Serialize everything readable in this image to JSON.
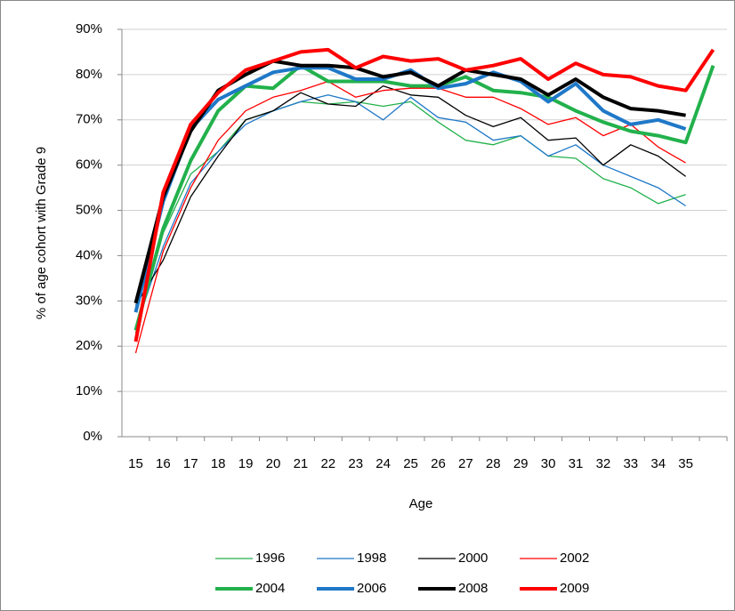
{
  "chart_data": {
    "type": "line",
    "y_label": "% of age cohort with Grade 9",
    "x_label": "Age",
    "categories": [
      "15",
      "16",
      "17",
      "18",
      "19",
      "20",
      "21",
      "22",
      "23",
      "24",
      "25",
      "26",
      "27",
      "28",
      "29",
      "30",
      "31",
      "32",
      "33",
      "34",
      "35",
      null
    ],
    "ylim": [
      0,
      90
    ],
    "yticks": [
      {
        "value": 0,
        "label": "0%"
      },
      {
        "value": 10,
        "label": "10%"
      },
      {
        "value": 20,
        "label": "20%"
      },
      {
        "value": 30,
        "label": "30%"
      },
      {
        "value": 40,
        "label": "40%"
      },
      {
        "value": 50,
        "label": "50%"
      },
      {
        "value": 60,
        "label": "60%"
      },
      {
        "value": 70,
        "label": "70%"
      },
      {
        "value": 80,
        "label": "80%"
      },
      {
        "value": 90,
        "label": "90%"
      }
    ],
    "grid": true,
    "legend": "bottom",
    "series": [
      {
        "name": "1996",
        "color": "#22b14c",
        "line_width": 1.3,
        "values": [
          23,
          45,
          58,
          63,
          70,
          72,
          74,
          73.5,
          74,
          73,
          74,
          69.5,
          65.5,
          64.5,
          66.5,
          62,
          61.5,
          57,
          55,
          51.5,
          53.5,
          null
        ]
      },
      {
        "name": "1998",
        "color": "#1f78c8",
        "line_width": 1.3,
        "values": [
          24,
          42,
          56,
          63,
          69,
          72,
          74,
          75.5,
          74,
          70,
          75,
          70.5,
          69.5,
          65.5,
          66.5,
          62,
          64.5,
          60,
          57.5,
          55,
          51,
          null
        ]
      },
      {
        "name": "2000",
        "color": "#000000",
        "line_width": 1.3,
        "values": [
          29,
          39,
          53,
          62,
          70,
          72,
          76,
          73.5,
          73,
          77.5,
          75.5,
          75,
          71,
          68.5,
          70.5,
          65.5,
          66,
          60,
          64.5,
          62,
          57.5,
          null
        ]
      },
      {
        "name": "2002",
        "color": "#ff0000",
        "line_width": 1.3,
        "values": [
          18.5,
          41,
          55,
          65.5,
          72,
          75,
          76.5,
          78.5,
          75,
          76.5,
          77,
          77,
          75,
          75,
          72.5,
          69,
          70.5,
          66.5,
          69,
          64,
          60.5,
          null
        ]
      },
      {
        "name": "2004",
        "color": "#22b14c",
        "line_width": 4,
        "values": [
          23.5,
          46,
          61,
          72,
          77.5,
          77,
          82,
          78.5,
          78.5,
          78.5,
          77.5,
          77.5,
          79.5,
          76.5,
          76,
          75,
          72,
          69.5,
          67.5,
          66.5,
          65,
          82
        ]
      },
      {
        "name": "2006",
        "color": "#1f78c8",
        "line_width": 4,
        "values": [
          27.5,
          52,
          68,
          74.5,
          77.5,
          80.5,
          81.5,
          81.5,
          79,
          79,
          81,
          77,
          78,
          80.5,
          78.5,
          74,
          78,
          72,
          69,
          70,
          68,
          null
        ]
      },
      {
        "name": "2008",
        "color": "#000000",
        "line_width": 4,
        "values": [
          29.5,
          53,
          67.5,
          76.5,
          80,
          83,
          82,
          82,
          81.5,
          79.5,
          80.5,
          77.5,
          81,
          80,
          79,
          75.5,
          79,
          75,
          72.5,
          72,
          71,
          null
        ]
      },
      {
        "name": "2009",
        "color": "#ff0000",
        "line_width": 4,
        "values": [
          21,
          54,
          69,
          76,
          81,
          83,
          85,
          85.5,
          81.5,
          84,
          83,
          83.5,
          81,
          82,
          83.5,
          79,
          82.5,
          80,
          79.5,
          77.5,
          76.5,
          85.5
        ]
      }
    ]
  }
}
